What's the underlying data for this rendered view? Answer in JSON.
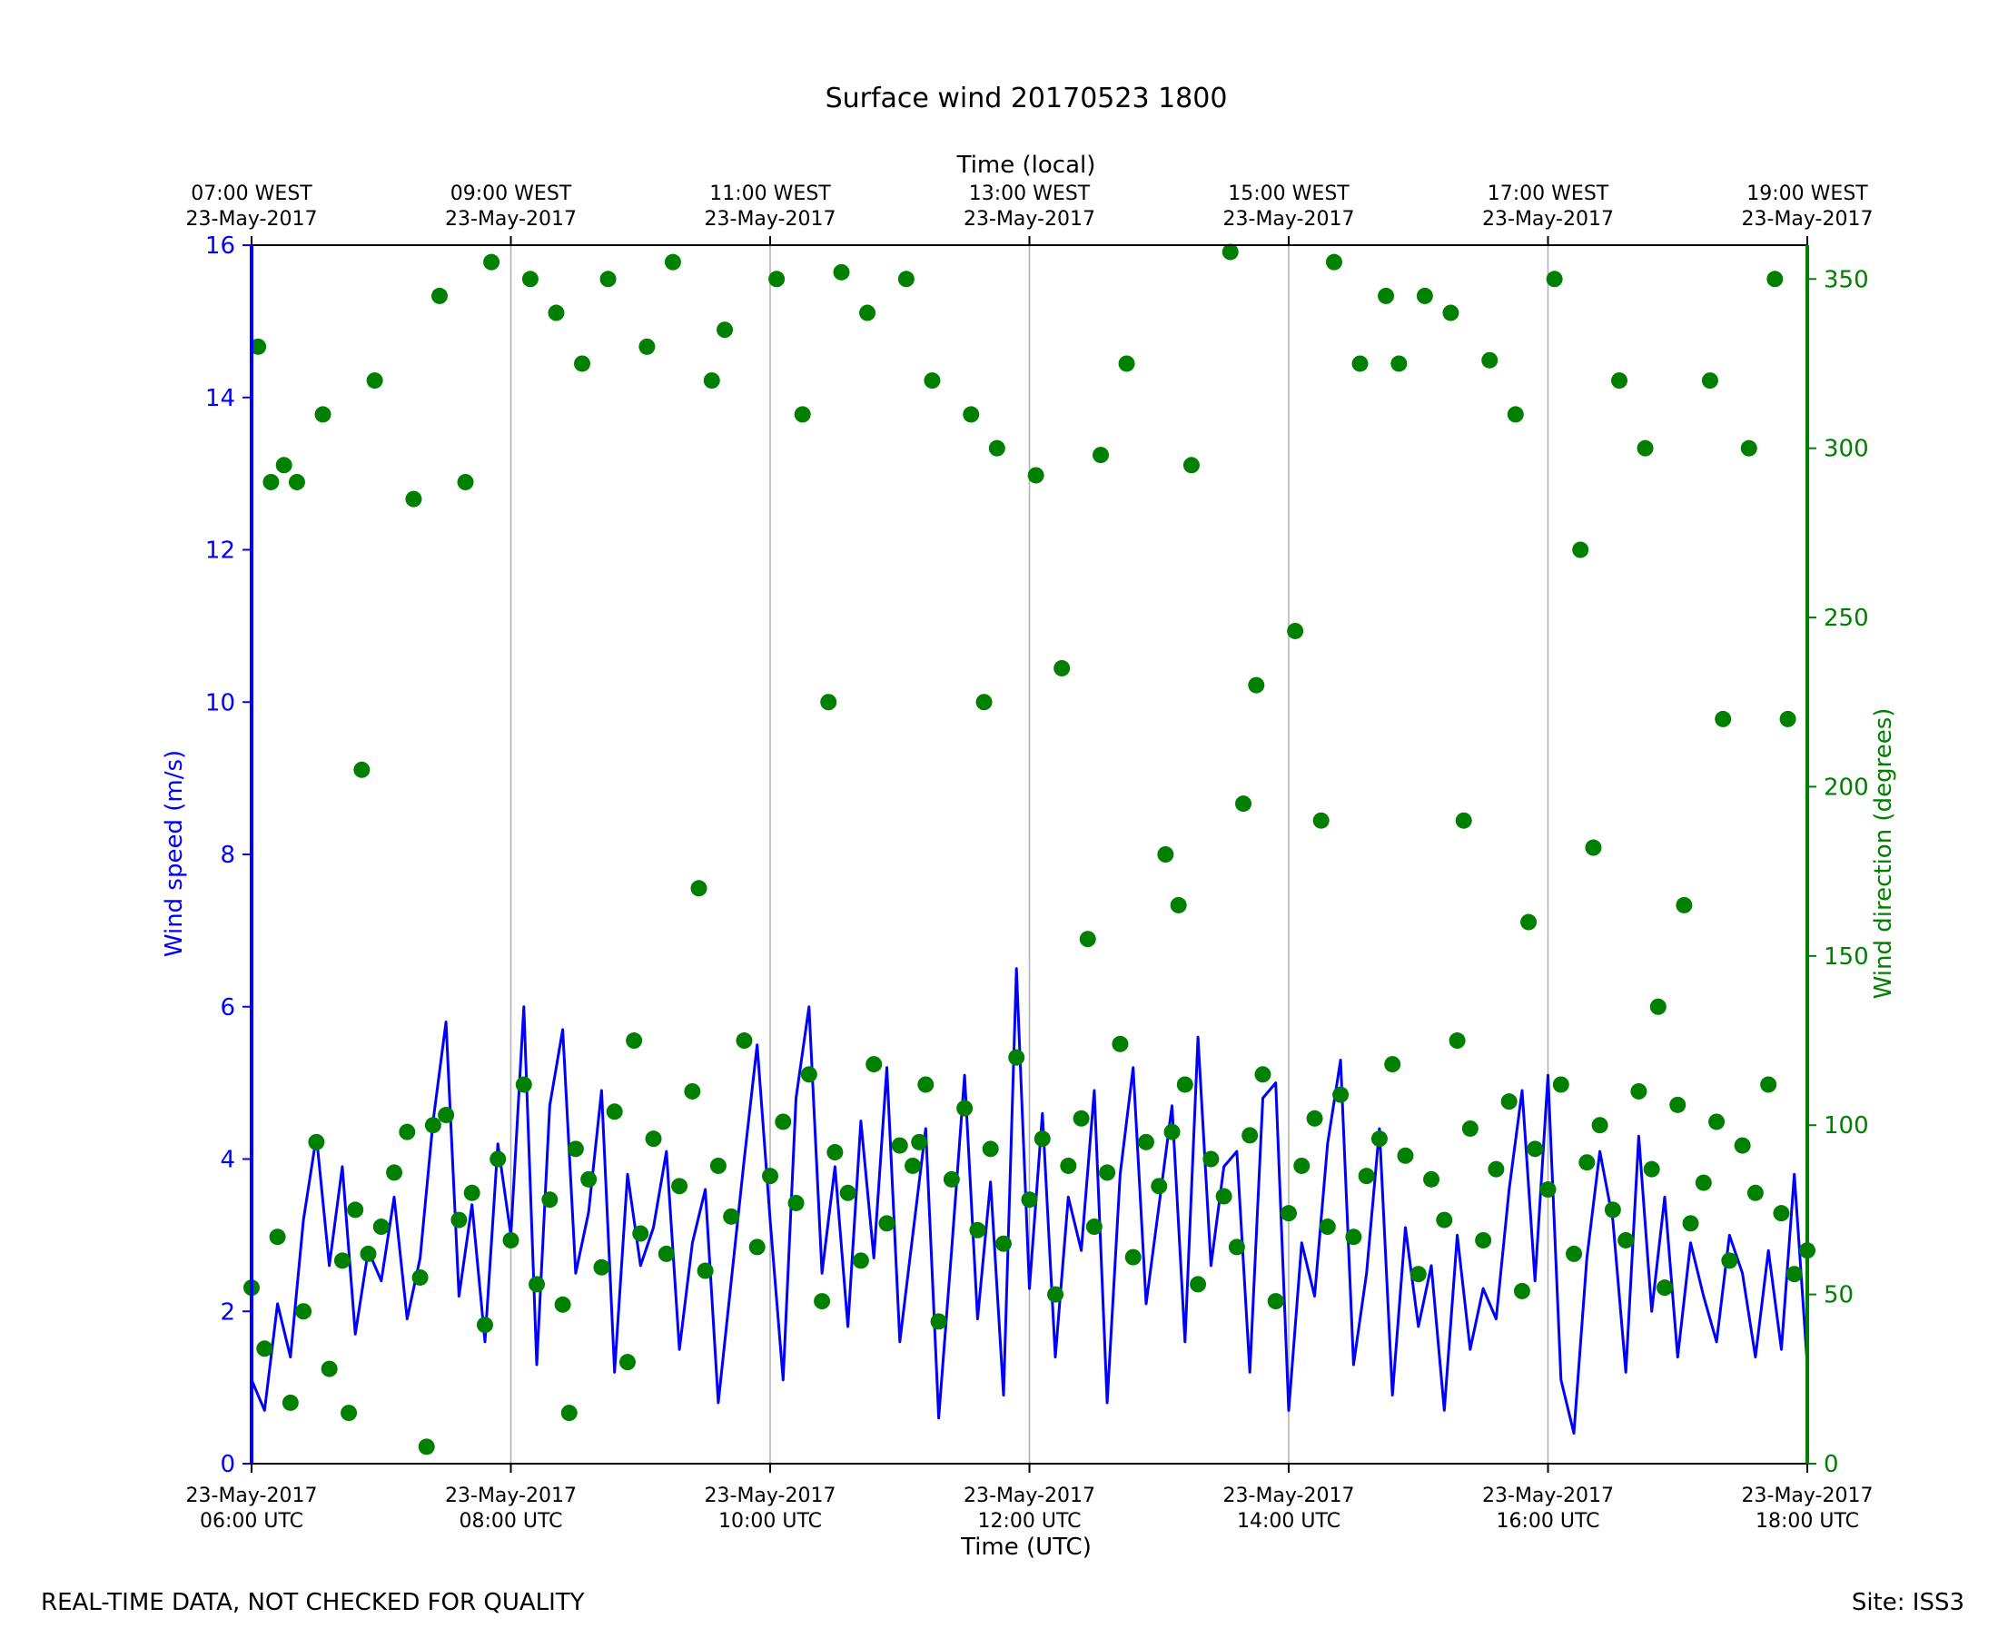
{
  "chart_data": {
    "type": "line",
    "title": "Surface wind 20170523 1800",
    "xlabel": "Time (UTC)",
    "xlabel_top": "Time (local)",
    "ylabel": "Wind speed (m/s)",
    "ylabel_right": "Wind direction (degrees)",
    "ylim": [
      0,
      16
    ],
    "ylim_right": [
      0,
      360
    ],
    "xlim_hours_utc": [
      6,
      18
    ],
    "grid": "vertical lines at each bottom tick",
    "yticks": [
      "0",
      "2",
      "4",
      "6",
      "8",
      "10",
      "12",
      "14",
      "16"
    ],
    "yticks_right": [
      "0",
      "50",
      "100",
      "150",
      "200",
      "250",
      "300",
      "350"
    ],
    "xticks_bottom": [
      {
        "date": "23-May-2017",
        "time": "06:00 UTC"
      },
      {
        "date": "23-May-2017",
        "time": "08:00 UTC"
      },
      {
        "date": "23-May-2017",
        "time": "10:00 UTC"
      },
      {
        "date": "23-May-2017",
        "time": "12:00 UTC"
      },
      {
        "date": "23-May-2017",
        "time": "14:00 UTC"
      },
      {
        "date": "23-May-2017",
        "time": "16:00 UTC"
      },
      {
        "date": "23-May-2017",
        "time": "18:00 UTC"
      }
    ],
    "xticks_top": [
      {
        "time": "07:00 WEST",
        "date": "23-May-2017"
      },
      {
        "time": "09:00 WEST",
        "date": "23-May-2017"
      },
      {
        "time": "11:00 WEST",
        "date": "23-May-2017"
      },
      {
        "time": "13:00 WEST",
        "date": "23-May-2017"
      },
      {
        "time": "15:00 WEST",
        "date": "23-May-2017"
      },
      {
        "time": "17:00 WEST",
        "date": "23-May-2017"
      },
      {
        "time": "19:00 WEST",
        "date": "23-May-2017"
      }
    ],
    "series": [
      {
        "kind": "line",
        "axis": "left",
        "color": "#0000ff",
        "x_hours_utc": [
          6.0,
          6.1,
          6.2,
          6.3,
          6.4,
          6.5,
          6.6,
          6.7,
          6.8,
          6.9,
          7.0,
          7.1,
          7.2,
          7.3,
          7.4,
          7.5,
          7.6,
          7.7,
          7.8,
          7.9,
          8.0,
          8.1,
          8.2,
          8.3,
          8.4,
          8.5,
          8.6,
          8.7,
          8.8,
          8.9,
          9.0,
          9.1,
          9.2,
          9.3,
          9.4,
          9.5,
          9.6,
          9.7,
          9.8,
          9.9,
          10.0,
          10.1,
          10.2,
          10.3,
          10.4,
          10.5,
          10.6,
          10.7,
          10.8,
          10.9,
          11.0,
          11.1,
          11.2,
          11.3,
          11.4,
          11.5,
          11.6,
          11.7,
          11.8,
          11.9,
          12.0,
          12.1,
          12.2,
          12.3,
          12.4,
          12.5,
          12.6,
          12.7,
          12.8,
          12.9,
          13.0,
          13.1,
          13.2,
          13.3,
          13.4,
          13.5,
          13.6,
          13.7,
          13.8,
          13.9,
          14.0,
          14.1,
          14.2,
          14.3,
          14.4,
          14.5,
          14.6,
          14.7,
          14.8,
          14.9,
          15.0,
          15.1,
          15.2,
          15.3,
          15.4,
          15.5,
          15.6,
          15.7,
          15.8,
          15.9,
          16.0,
          16.1,
          16.2,
          16.3,
          16.4,
          16.5,
          16.6,
          16.7,
          16.8,
          16.9,
          17.0,
          17.1,
          17.2,
          17.3,
          17.4,
          17.5,
          17.6,
          17.7,
          17.8,
          17.9,
          18.0
        ],
        "values": [
          1.1,
          0.7,
          2.1,
          1.4,
          3.2,
          4.3,
          2.6,
          3.9,
          1.7,
          2.8,
          2.4,
          3.5,
          1.9,
          2.7,
          4.5,
          5.8,
          2.2,
          3.4,
          1.6,
          4.2,
          3.0,
          6.0,
          1.3,
          4.7,
          5.7,
          2.5,
          3.3,
          4.9,
          1.2,
          3.8,
          2.6,
          3.1,
          4.1,
          1.5,
          2.9,
          3.6,
          0.8,
          2.4,
          4.0,
          5.5,
          3.2,
          1.1,
          4.8,
          6.0,
          2.5,
          3.9,
          1.8,
          4.5,
          2.7,
          5.2,
          1.6,
          3.0,
          4.4,
          0.6,
          2.8,
          5.1,
          1.9,
          3.7,
          0.9,
          6.5,
          2.3,
          4.6,
          1.4,
          3.5,
          2.8,
          4.9,
          0.8,
          3.8,
          5.2,
          2.1,
          3.4,
          4.7,
          1.6,
          5.6,
          2.6,
          3.9,
          4.1,
          1.2,
          4.8,
          5.0,
          0.7,
          2.9,
          2.2,
          4.2,
          5.3,
          1.3,
          2.5,
          4.4,
          0.9,
          3.1,
          1.8,
          2.6,
          0.7,
          3.0,
          1.5,
          2.3,
          1.9,
          3.6,
          4.9,
          2.4,
          5.1,
          1.1,
          0.4,
          2.7,
          4.1,
          3.2,
          1.2,
          4.3,
          2.0,
          3.5,
          1.4,
          2.9,
          2.2,
          1.6,
          3.0,
          2.5,
          1.4,
          2.8,
          1.5,
          3.8,
          1.3
        ]
      },
      {
        "kind": "scatter",
        "axis": "right",
        "color": "#008000",
        "x_hours_utc": [
          6.0,
          6.1,
          6.2,
          6.3,
          6.4,
          6.5,
          6.6,
          6.7,
          6.8,
          6.9,
          7.0,
          7.1,
          7.2,
          7.3,
          7.4,
          7.5,
          7.6,
          7.7,
          7.8,
          7.9,
          8.0,
          8.1,
          8.2,
          8.3,
          8.4,
          8.5,
          8.6,
          8.7,
          8.8,
          8.9,
          9.0,
          9.1,
          9.2,
          9.3,
          9.4,
          9.5,
          9.6,
          9.7,
          9.8,
          9.9,
          10.0,
          10.1,
          10.2,
          10.3,
          10.4,
          10.5,
          10.6,
          10.7,
          10.8,
          10.9,
          11.0,
          11.1,
          11.2,
          11.3,
          11.4,
          11.5,
          11.6,
          11.7,
          11.8,
          11.9,
          12.0,
          12.1,
          12.2,
          12.3,
          12.4,
          12.5,
          12.6,
          12.7,
          12.8,
          12.9,
          13.0,
          13.1,
          13.2,
          13.3,
          13.4,
          13.5,
          13.6,
          13.7,
          13.8,
          13.9,
          14.0,
          14.1,
          14.2,
          14.3,
          14.4,
          14.5,
          14.6,
          14.7,
          14.8,
          14.9,
          15.0,
          15.1,
          15.2,
          15.3,
          15.4,
          15.5,
          15.6,
          15.7,
          15.8,
          15.9,
          16.0,
          16.1,
          16.2,
          16.3,
          16.4,
          16.5,
          16.6,
          16.7,
          16.8,
          16.9,
          17.0,
          17.1,
          17.2,
          17.3,
          17.4,
          17.5,
          17.6,
          17.7,
          17.8,
          17.9,
          18.0,
          6.05,
          6.35,
          6.75,
          7.25,
          7.65,
          8.15,
          8.55,
          9.05,
          9.55,
          10.05,
          10.55,
          11.05,
          11.55,
          12.05,
          12.55,
          13.05,
          13.55,
          14.05,
          14.55,
          15.05,
          15.55,
          16.05,
          16.55,
          17.05,
          17.55,
          6.15,
          6.55,
          6.95,
          7.45,
          7.85,
          8.35,
          8.75,
          9.25,
          9.65,
          10.25,
          10.75,
          11.25,
          11.75,
          12.25,
          12.75,
          13.25,
          13.75,
          14.25,
          14.75,
          15.25,
          15.75,
          16.25,
          16.75,
          17.25,
          17.75,
          6.25,
          6.85,
          7.35,
          8.45,
          8.95,
          9.45,
          10.45,
          11.15,
          11.65,
          12.45,
          13.15,
          13.65,
          14.35,
          14.85,
          15.35,
          15.85,
          16.35,
          16.85,
          17.35,
          17.85
        ],
        "values": [
          52,
          34,
          67,
          18,
          45,
          95,
          28,
          60,
          75,
          62,
          70,
          86,
          98,
          55,
          100,
          103,
          72,
          80,
          41,
          90,
          66,
          112,
          53,
          78,
          47,
          93,
          84,
          58,
          104,
          30,
          68,
          96,
          62,
          82,
          110,
          57,
          88,
          73,
          125,
          64,
          85,
          101,
          77,
          115,
          48,
          92,
          80,
          60,
          118,
          71,
          94,
          88,
          112,
          42,
          84,
          105,
          69,
          93,
          65,
          120,
          78,
          96,
          50,
          88,
          102,
          70,
          86,
          124,
          61,
          95,
          82,
          98,
          112,
          53,
          90,
          79,
          64,
          97,
          115,
          48,
          74,
          88,
          102,
          70,
          109,
          67,
          85,
          96,
          118,
          91,
          56,
          84,
          72,
          125,
          99,
          66,
          87,
          107,
          51,
          93,
          81,
          112,
          62,
          89,
          100,
          75,
          66,
          110,
          87,
          52,
          106,
          71,
          83,
          101,
          60,
          94,
          80,
          112,
          74,
          56,
          63,
          330,
          290,
          15,
          285,
          290,
          350,
          325,
          330,
          320,
          350,
          352,
          350,
          310,
          292,
          298,
          180,
          358,
          246,
          325,
          345,
          326,
          350,
          320,
          165,
          300,
          290,
          310,
          320,
          345,
          355,
          340,
          350,
          355,
          335,
          310,
          340,
          320,
          300,
          235,
          325,
          295,
          230,
          190,
          345,
          340,
          310,
          270,
          300,
          320,
          350,
          295,
          205,
          5,
          15,
          125,
          170,
          225,
          95,
          225,
          155,
          165,
          195,
          355,
          325,
          190,
          160,
          182,
          135,
          220,
          220,
          188,
          200,
          165,
          205,
          358,
          305,
          145
        ],
        "point_count_note": ""
      }
    ]
  },
  "footer": {
    "left": "REAL-TIME DATA, NOT CHECKED FOR QUALITY",
    "right": "Site: ISS3"
  }
}
